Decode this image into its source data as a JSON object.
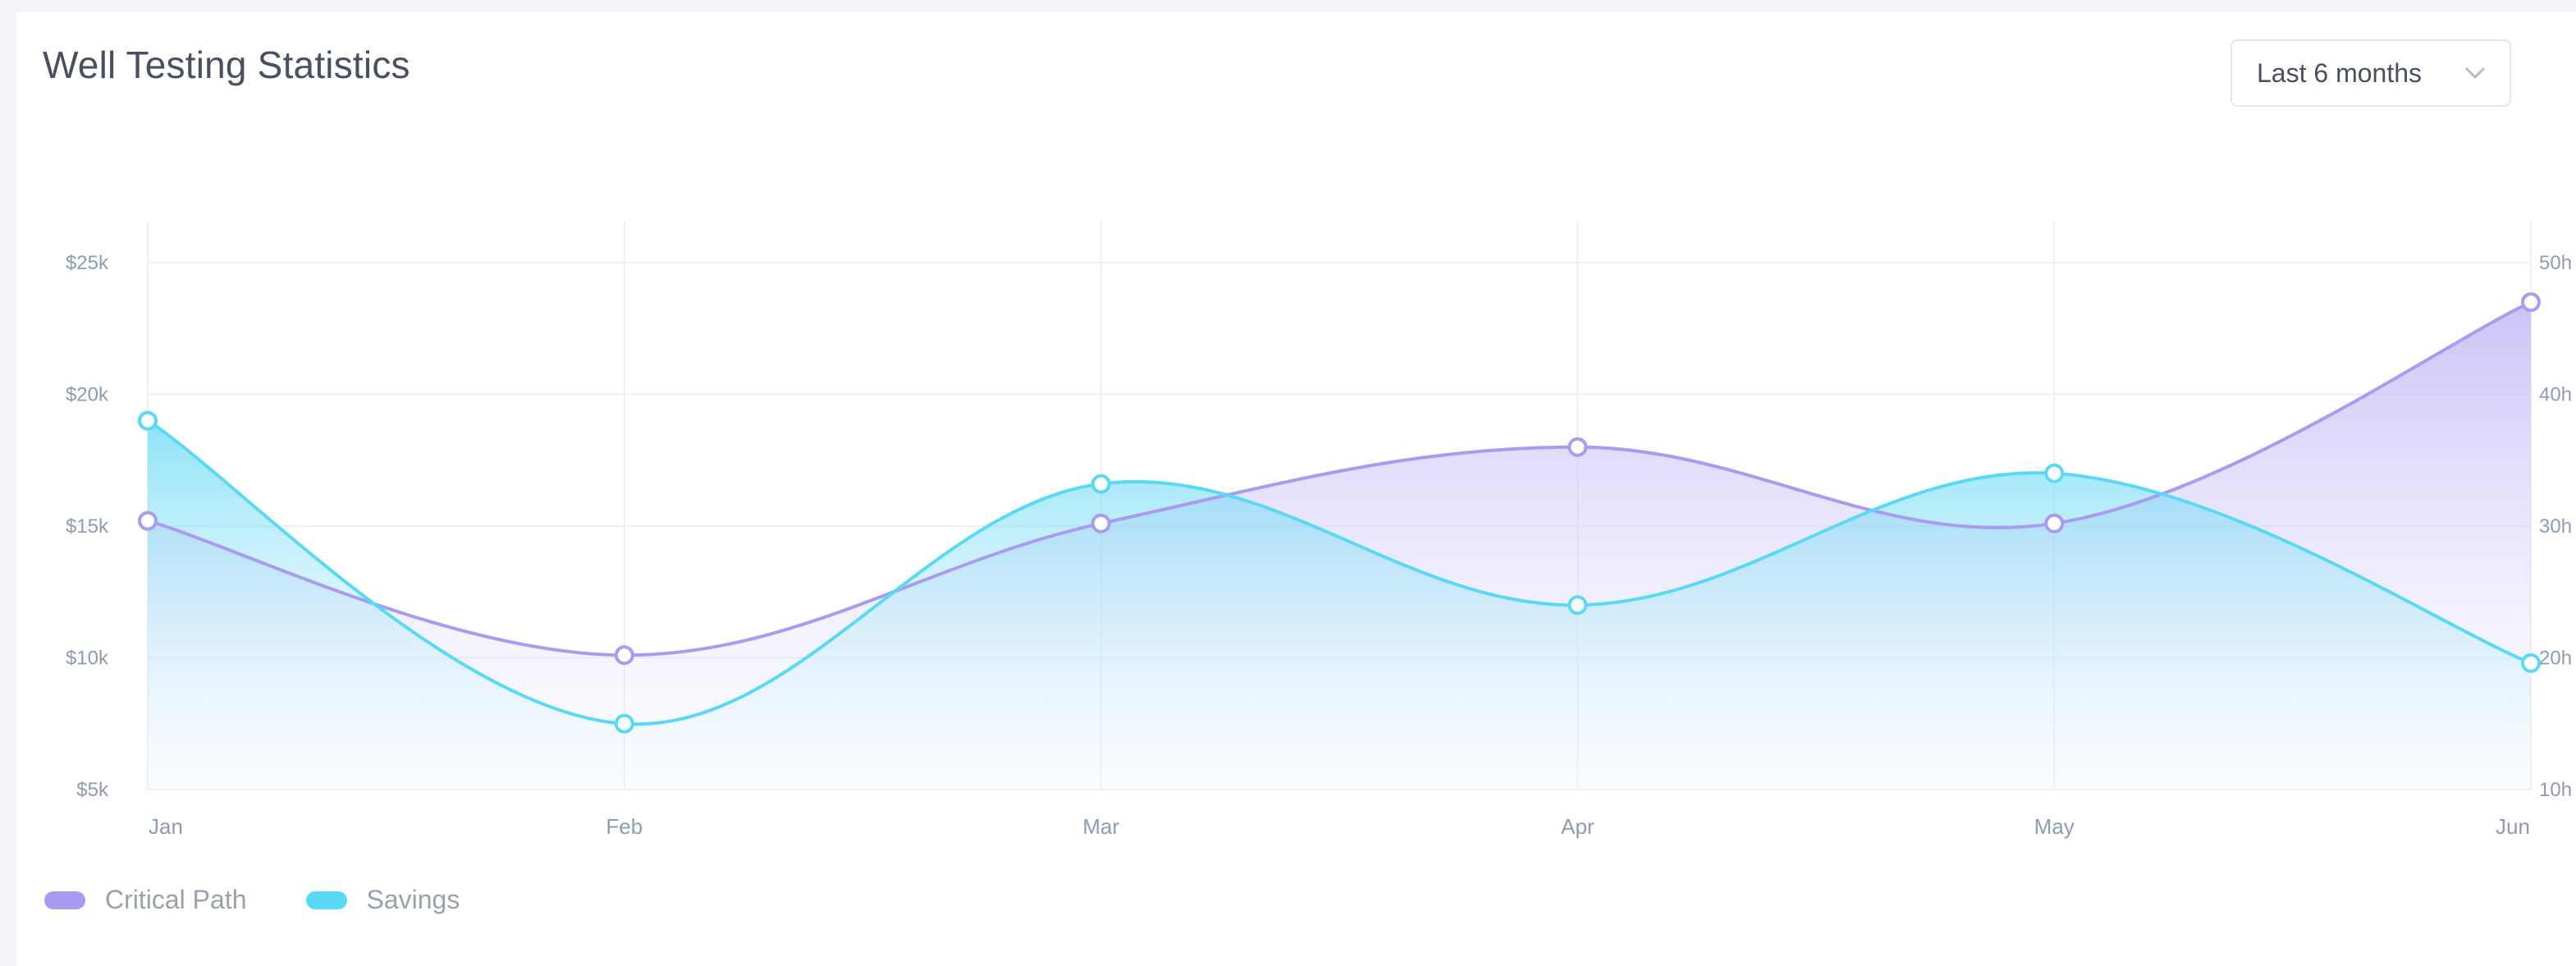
{
  "card": {
    "title": "Well Testing Statistics"
  },
  "range_select": {
    "value": "Last 6 months",
    "icon": "chevron-down-icon"
  },
  "colors": {
    "critical_path": "#a99cf0",
    "savings": "#5ad9f5",
    "grid": "#edf0f5",
    "tick": "#8f9bb3"
  },
  "chart_data": {
    "type": "area",
    "categories": [
      "Jan",
      "Feb",
      "Mar",
      "Apr",
      "May",
      "Jun"
    ],
    "y_left": {
      "ticks": [
        "$5k",
        "$10k",
        "$15k",
        "$20k",
        "$25k"
      ],
      "range": [
        5000,
        25000
      ]
    },
    "y_right": {
      "ticks": [
        "10h",
        "20h",
        "30h",
        "40h",
        "50h"
      ],
      "range": [
        10,
        50
      ]
    },
    "series": [
      {
        "name": "Critical Path",
        "axis": "left",
        "values": [
          15200,
          10100,
          15100,
          18000,
          15100,
          23500
        ]
      },
      {
        "name": "Savings",
        "axis": "left",
        "values": [
          19000,
          7500,
          16600,
          12000,
          17000,
          9800
        ]
      }
    ],
    "grid": true,
    "legend_position": "bottom-left"
  }
}
